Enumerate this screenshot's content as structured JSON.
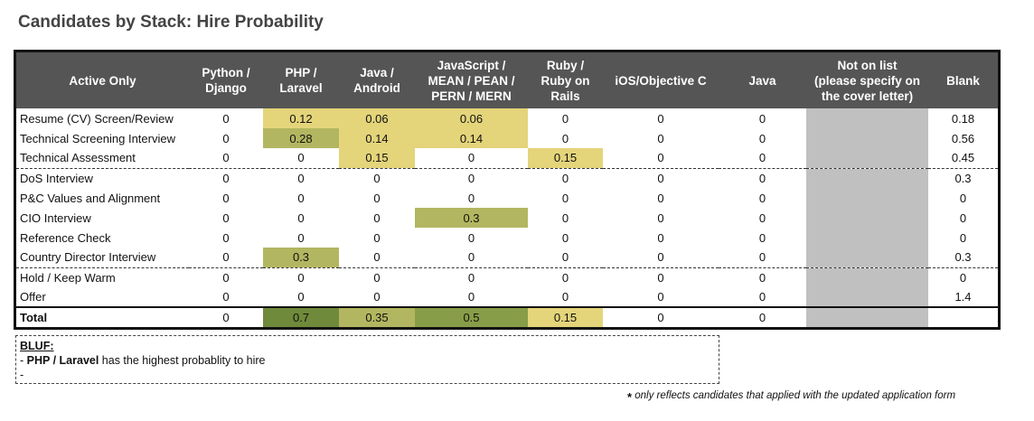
{
  "title": "Candidates by Stack: Hire Probability",
  "table": {
    "headers": [
      "Active Only",
      "Python /\nDjango",
      "PHP /\nLaravel",
      "Java /\nAndroid",
      "JavaScript /\nMEAN / PEAN /\nPERN / MERN",
      "Ruby /\nRuby on\nRails",
      "iOS/Objective C",
      "Java",
      "Not on list\n(please specify on\nthe cover letter)",
      "Blank"
    ],
    "rows": [
      {
        "label": "Resume (CV) Screen/Review",
        "values": [
          "0",
          "0.12",
          "0.06",
          "0.06",
          "0",
          "0",
          "0",
          "",
          "0.18"
        ]
      },
      {
        "label": "Technical Screening Interview",
        "values": [
          "0",
          "0.28",
          "0.14",
          "0.14",
          "0",
          "0",
          "0",
          "",
          "0.56"
        ]
      },
      {
        "label": "Technical Assessment",
        "values": [
          "0",
          "0",
          "0.15",
          "0",
          "0.15",
          "0",
          "0",
          "",
          "0.45"
        ]
      },
      {
        "label": "DoS Interview",
        "values": [
          "0",
          "0",
          "0",
          "0",
          "0",
          "0",
          "0",
          "",
          "0.3"
        ]
      },
      {
        "label": "P&C Values and Alignment",
        "values": [
          "0",
          "0",
          "0",
          "0",
          "0",
          "0",
          "0",
          "",
          "0"
        ]
      },
      {
        "label": "CIO Interview",
        "values": [
          "0",
          "0",
          "0",
          "0.3",
          "0",
          "0",
          "0",
          "",
          "0"
        ]
      },
      {
        "label": "Reference Check",
        "values": [
          "0",
          "0",
          "0",
          "0",
          "0",
          "0",
          "0",
          "",
          "0"
        ]
      },
      {
        "label": "Country Director Interview",
        "values": [
          "0",
          "0.3",
          "0",
          "0",
          "0",
          "0",
          "0",
          "",
          "0.3"
        ]
      },
      {
        "label": "Hold / Keep Warm",
        "values": [
          "0",
          "0",
          "0",
          "0",
          "0",
          "0",
          "0",
          "",
          "0"
        ]
      },
      {
        "label": "Offer",
        "values": [
          "0",
          "0",
          "0",
          "0",
          "0",
          "0",
          "0",
          "",
          "1.4"
        ]
      },
      {
        "label": "Total",
        "values": [
          "0",
          "0.7",
          "0.35",
          "0.5",
          "0.15",
          "0",
          "0",
          "",
          ""
        ]
      }
    ],
    "cell_colors": {
      "0": {
        "1": "#e4d47a",
        "2": "#e4d47a",
        "3": "#e4d47a"
      },
      "1": {
        "1": "#b3b660",
        "2": "#e4d47a",
        "3": "#e4d47a"
      },
      "2": {
        "2": "#e4d47a",
        "4": "#e4d47a"
      },
      "5": {
        "3": "#b3b660"
      },
      "7": {
        "1": "#b3b660"
      },
      "10": {
        "1": "#6f8a3a",
        "2": "#b3b660",
        "3": "#889d47",
        "4": "#e4d47a"
      }
    }
  },
  "bluf": {
    "heading": "BLUF:",
    "line1_prefix": "- ",
    "line1_bold": "PHP / Laravel",
    "line1_rest": " has the highest probablity to hire",
    "line2": "-"
  },
  "footnote": {
    "star": "*",
    "text": " only reflects candidates that applied with the updated application form"
  }
}
